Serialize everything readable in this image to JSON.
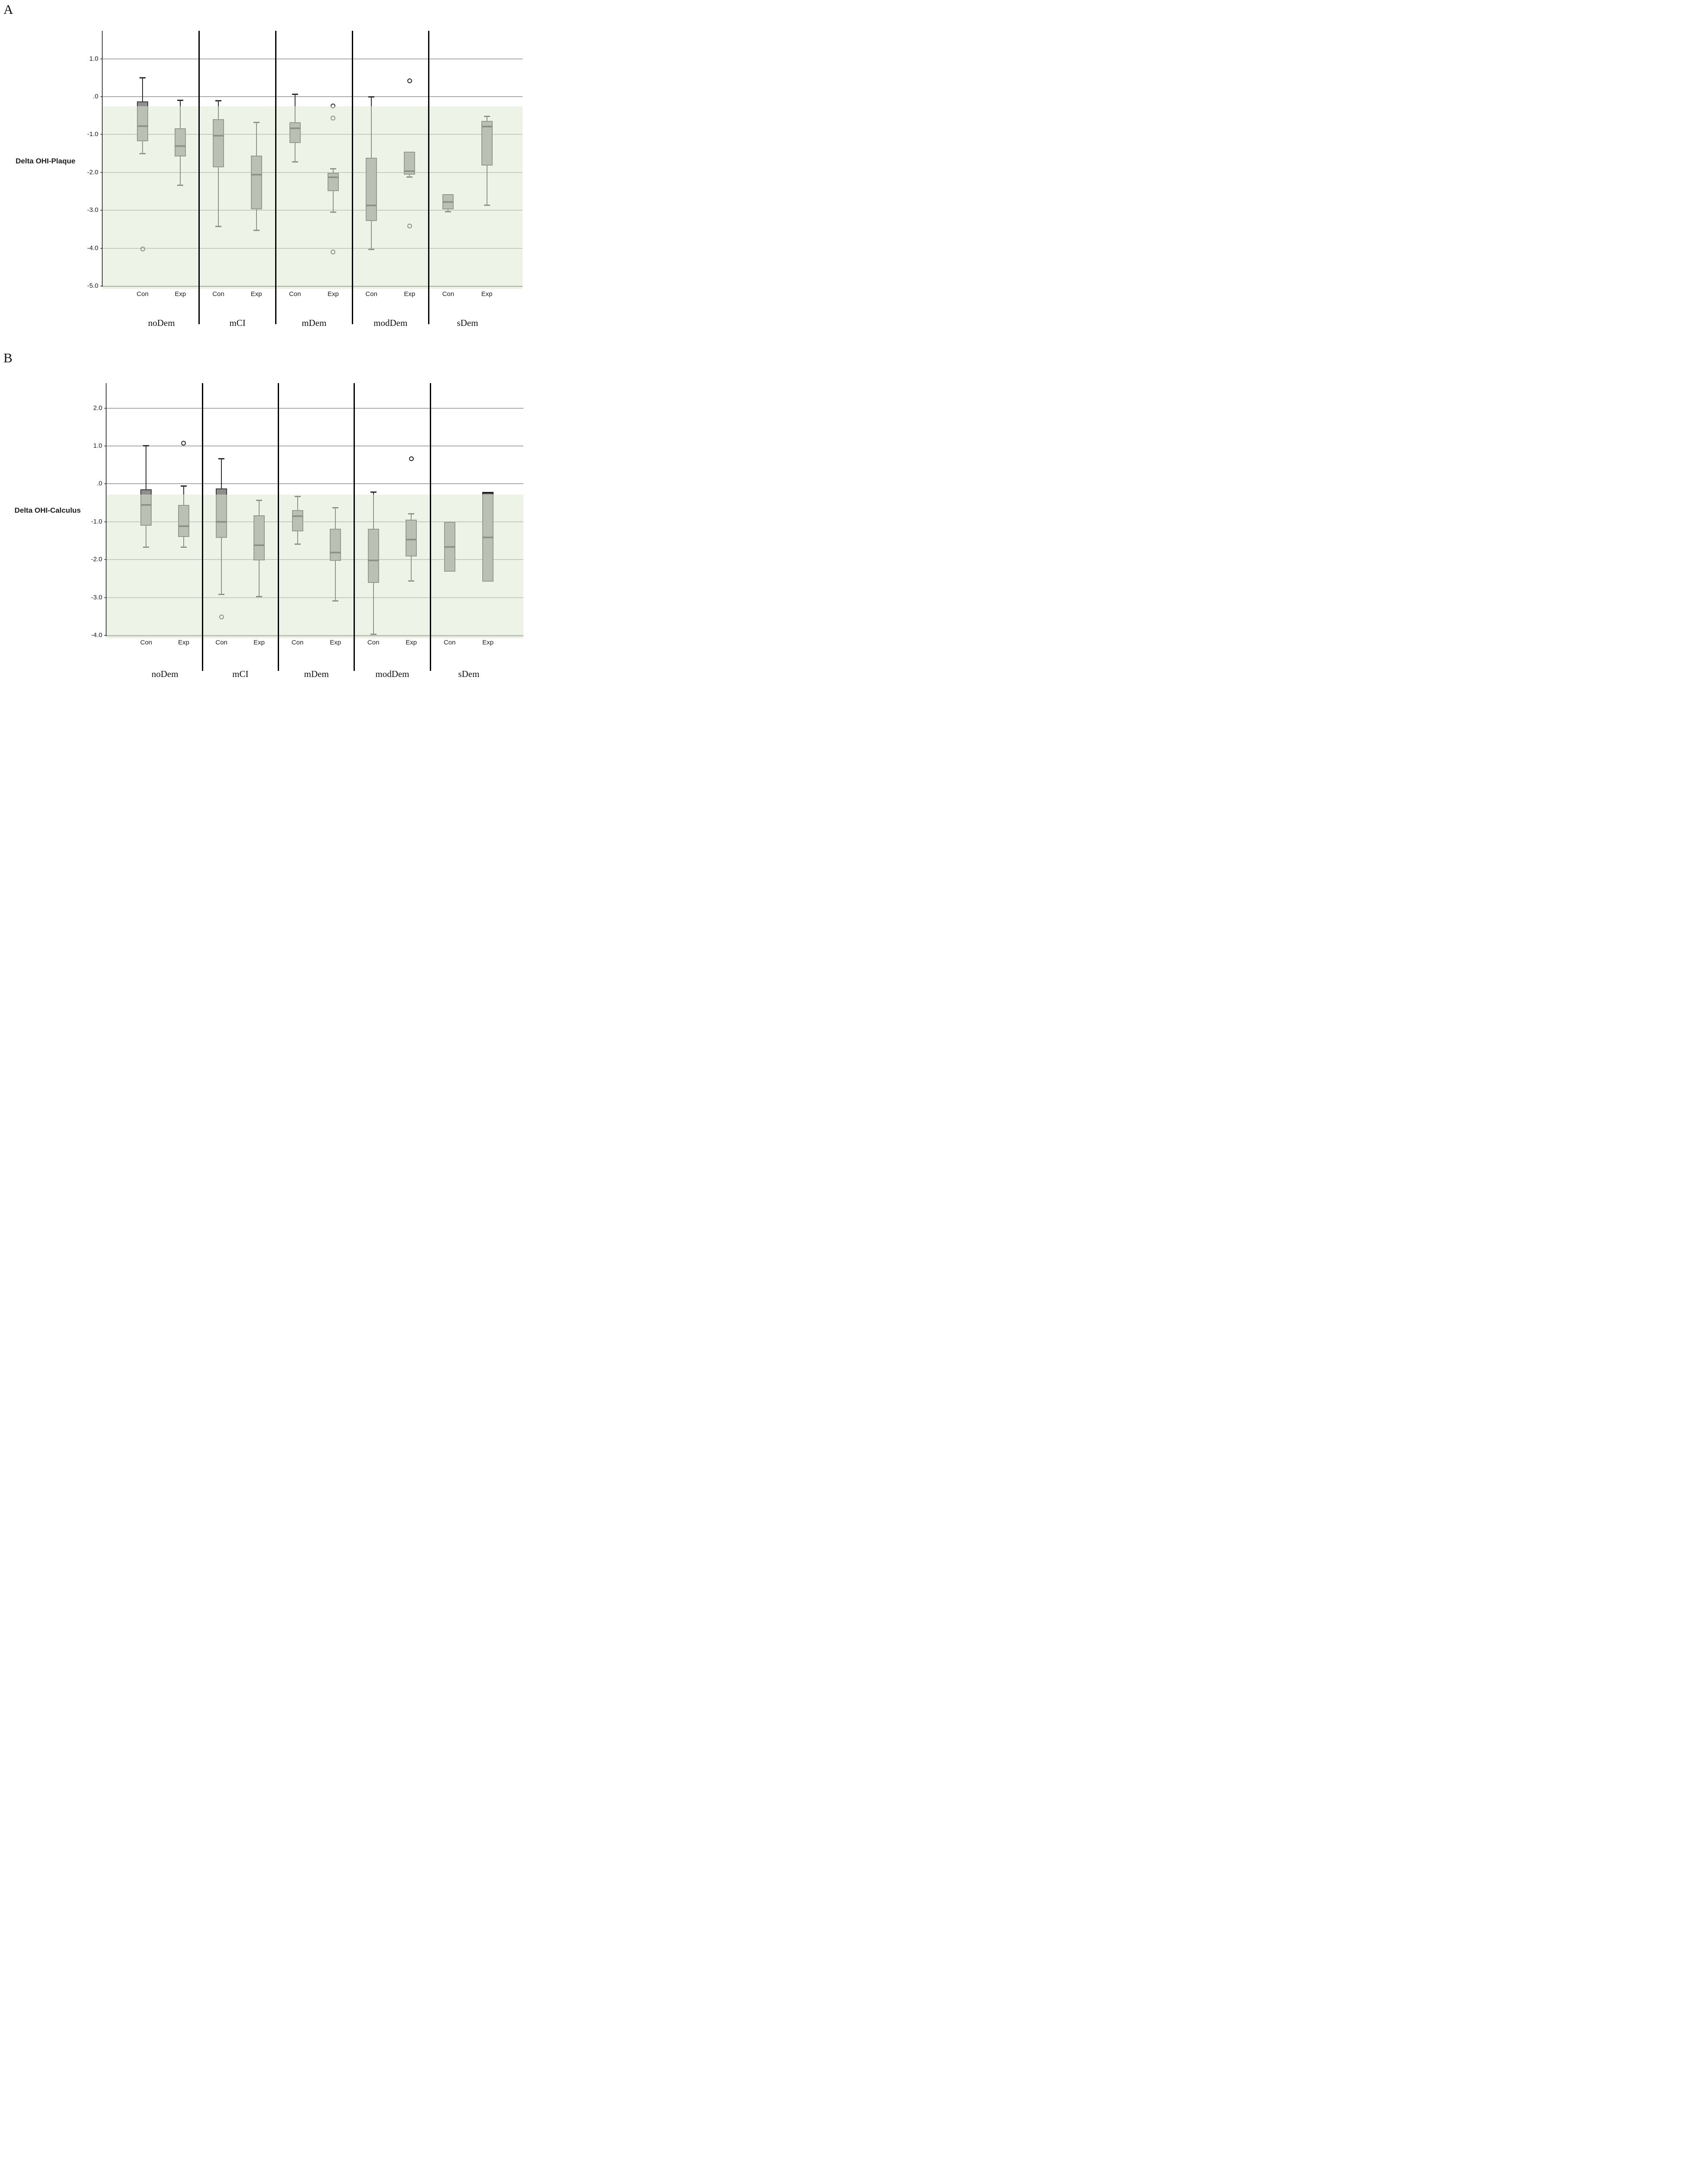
{
  "figure": {
    "panel_a": {
      "letter": "A",
      "axis_title": "Delta OHI-Plaque"
    },
    "panel_b": {
      "letter": "B",
      "axis_title": "Delta OHI-Calculus"
    }
  },
  "colors": {
    "box_fill": "#8f8f8c",
    "box_border": "#3c3c3a",
    "median": "#2e2e2c",
    "whisker": "#2d2d2b",
    "gridline": "#a9a9a9",
    "axis": "#4a4a4a",
    "separator": "#000000",
    "band_overlay": "rgba(223,233,211,0.55)"
  },
  "chart_data": [
    {
      "type": "boxplot",
      "panel": "A",
      "title": "Delta OHI-Plaque",
      "ylabel": "Delta OHI-Plaque",
      "ylim": [
        -5.0,
        1.74
      ],
      "grid": true,
      "shaded_band_top": -0.25,
      "y_ticks": [
        {
          "value": 1.0,
          "label": "1.0"
        },
        {
          "value": 0.0,
          "label": ".0"
        },
        {
          "value": -1.0,
          "label": "-1.0"
        },
        {
          "value": -2.0,
          "label": "-2.0"
        },
        {
          "value": -3.0,
          "label": "-3.0"
        },
        {
          "value": -4.0,
          "label": "-4.0"
        },
        {
          "value": -5.0,
          "label": "-5.0"
        }
      ],
      "groups": [
        "noDem",
        "mCI",
        "mDem",
        "modDem",
        "sDem"
      ],
      "conditions": [
        "Con",
        "Exp"
      ],
      "boxes": [
        {
          "group": "noDem",
          "cond": "Con",
          "lo": -1.5,
          "q1": -1.18,
          "med": -0.78,
          "q3": -0.13,
          "hi": 0.5,
          "outliers": [
            -4.02
          ]
        },
        {
          "group": "noDem",
          "cond": "Exp",
          "lo": -2.33,
          "q1": -1.58,
          "med": -1.3,
          "q3": -0.83,
          "hi": -0.09,
          "outliers": []
        },
        {
          "group": "mCI",
          "cond": "Con",
          "lo": -3.42,
          "q1": -1.86,
          "med": -1.03,
          "q3": -0.59,
          "hi": -0.1,
          "outliers": []
        },
        {
          "group": "mCI",
          "cond": "Exp",
          "lo": -3.52,
          "q1": -2.98,
          "med": -2.06,
          "q3": -1.56,
          "hi": -0.67,
          "outliers": []
        },
        {
          "group": "mDem",
          "cond": "Con",
          "lo": -1.72,
          "q1": -1.22,
          "med": -0.84,
          "q3": -0.68,
          "hi": 0.07,
          "outliers": []
        },
        {
          "group": "mDem",
          "cond": "Exp",
          "lo": -3.04,
          "q1": -2.49,
          "med": -2.13,
          "q3": -2.01,
          "hi": -1.9,
          "outliers": [
            -0.25,
            -0.57,
            -4.1
          ]
        },
        {
          "group": "modDem",
          "cond": "Con",
          "lo": -4.03,
          "q1": -3.28,
          "med": -2.87,
          "q3": -1.61,
          "hi": 0.0,
          "outliers": []
        },
        {
          "group": "modDem",
          "cond": "Exp",
          "lo": -2.12,
          "q1": -2.06,
          "med": -1.97,
          "q3": -1.45,
          "hi": -1.45,
          "outliers": [
            0.42,
            -3.42
          ]
        },
        {
          "group": "sDem",
          "cond": "Con",
          "lo": -3.03,
          "q1": -2.98,
          "med": -2.78,
          "q3": -2.57,
          "hi": -2.57,
          "outliers": []
        },
        {
          "group": "sDem",
          "cond": "Exp",
          "lo": -2.86,
          "q1": -1.82,
          "med": -0.79,
          "q3": -0.64,
          "hi": -0.52,
          "outliers": []
        }
      ]
    },
    {
      "type": "boxplot",
      "panel": "B",
      "title": "Delta OHI-Calculus",
      "ylabel": "Delta OHI-Calculus",
      "ylim": [
        -4.0,
        2.66
      ],
      "grid": true,
      "shaded_band_top": -0.28,
      "y_ticks": [
        {
          "value": 2.0,
          "label": "2.0"
        },
        {
          "value": 1.0,
          "label": "1.0"
        },
        {
          "value": 0.0,
          "label": ".0"
        },
        {
          "value": -1.0,
          "label": "-1.0"
        },
        {
          "value": -2.0,
          "label": "-2.0"
        },
        {
          "value": -3.0,
          "label": "-3.0"
        },
        {
          "value": -4.0,
          "label": "-4.0"
        }
      ],
      "groups": [
        "noDem",
        "mCI",
        "mDem",
        "modDem",
        "sDem"
      ],
      "conditions": [
        "Con",
        "Exp"
      ],
      "boxes": [
        {
          "group": "noDem",
          "cond": "Con",
          "lo": -1.66,
          "q1": -1.1,
          "med": -0.56,
          "q3": -0.14,
          "hi": 1.01,
          "outliers": []
        },
        {
          "group": "noDem",
          "cond": "Exp",
          "lo": -1.66,
          "q1": -1.4,
          "med": -1.12,
          "q3": -0.56,
          "hi": -0.05,
          "outliers": [
            1.07
          ]
        },
        {
          "group": "mCI",
          "cond": "Con",
          "lo": -2.91,
          "q1": -1.43,
          "med": -1.0,
          "q3": -0.12,
          "hi": 0.67,
          "outliers": [
            -3.51
          ]
        },
        {
          "group": "mCI",
          "cond": "Exp",
          "lo": -2.97,
          "q1": -2.02,
          "med": -1.62,
          "q3": -0.83,
          "hi": -0.43,
          "outliers": []
        },
        {
          "group": "mDem",
          "cond": "Con",
          "lo": -1.59,
          "q1": -1.25,
          "med": -0.85,
          "q3": -0.69,
          "hi": -0.33,
          "outliers": []
        },
        {
          "group": "mDem",
          "cond": "Exp",
          "lo": -3.08,
          "q1": -2.03,
          "med": -1.82,
          "q3": -1.19,
          "hi": -0.62,
          "outliers": []
        },
        {
          "group": "modDem",
          "cond": "Con",
          "lo": -3.97,
          "q1": -2.62,
          "med": -2.02,
          "q3": -1.19,
          "hi": -0.21,
          "outliers": []
        },
        {
          "group": "modDem",
          "cond": "Exp",
          "lo": -2.56,
          "q1": -1.92,
          "med": -1.47,
          "q3": -0.94,
          "hi": -0.78,
          "outliers": [
            0.66
          ]
        },
        {
          "group": "sDem",
          "cond": "Con",
          "lo": -2.32,
          "q1": -2.32,
          "med": -1.66,
          "q3": -1.0,
          "hi": -1.0,
          "outliers": []
        },
        {
          "group": "sDem",
          "cond": "Exp",
          "lo": -2.58,
          "q1": -2.58,
          "med": -1.41,
          "q3": -0.24,
          "hi": -0.24,
          "outliers": [],
          "thick_top": true
        }
      ]
    }
  ]
}
